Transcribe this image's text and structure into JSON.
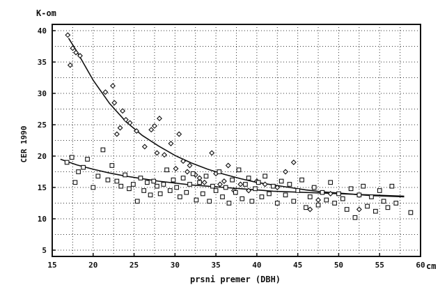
{
  "chart_data": {
    "type": "scatter",
    "y_unit": "K-om",
    "x_unit": "cm",
    "ylabel": "CER 1990",
    "xlabel": "prsni premer (DBH)",
    "xlim": [
      15,
      60
    ],
    "ylim": [
      4,
      41
    ],
    "x_ticks": [
      15,
      20,
      25,
      30,
      35,
      40,
      45,
      50,
      55,
      60
    ],
    "y_ticks": [
      5,
      10,
      15,
      20,
      25,
      30,
      35,
      40
    ],
    "grid": true,
    "series": [
      {
        "marker": "diamond",
        "points": [
          [
            16.9,
            39.3
          ],
          [
            17.2,
            34.5
          ],
          [
            17.5,
            37.2
          ],
          [
            17.9,
            36.5
          ],
          [
            18.4,
            36.0
          ],
          [
            21.5,
            30.2
          ],
          [
            22.4,
            31.2
          ],
          [
            22.6,
            28.5
          ],
          [
            22.9,
            23.5
          ],
          [
            23.3,
            24.5
          ],
          [
            23.6,
            27.2
          ],
          [
            24.0,
            25.8
          ],
          [
            24.5,
            25.3
          ],
          [
            25.3,
            24.0
          ],
          [
            26.3,
            21.5
          ],
          [
            27.1,
            24.2
          ],
          [
            27.5,
            24.8
          ],
          [
            27.8,
            20.5
          ],
          [
            28.1,
            26.0
          ],
          [
            28.7,
            20.2
          ],
          [
            29.5,
            22.0
          ],
          [
            30.1,
            18.0
          ],
          [
            30.5,
            23.5
          ],
          [
            31.0,
            19.2
          ],
          [
            31.5,
            17.5
          ],
          [
            31.8,
            18.5
          ],
          [
            32.5,
            17.0
          ],
          [
            33.0,
            16.5
          ],
          [
            33.6,
            15.8
          ],
          [
            34.5,
            20.5
          ],
          [
            35.0,
            17.2
          ],
          [
            35.5,
            15.5
          ],
          [
            36.0,
            16.0
          ],
          [
            36.5,
            18.5
          ],
          [
            37.2,
            14.5
          ],
          [
            38.0,
            15.5
          ],
          [
            39.0,
            14.5
          ],
          [
            40.0,
            16.0
          ],
          [
            41.0,
            15.5
          ],
          [
            42.5,
            15.0
          ],
          [
            43.5,
            17.5
          ],
          [
            44.5,
            19.0
          ],
          [
            46.5,
            11.5
          ],
          [
            47.5,
            13.0
          ],
          [
            49.0,
            14.0
          ],
          [
            52.5,
            11.5
          ]
        ]
      },
      {
        "marker": "square",
        "points": [
          [
            16.8,
            19.0
          ],
          [
            17.4,
            19.8
          ],
          [
            17.8,
            15.8
          ],
          [
            18.2,
            17.5
          ],
          [
            18.8,
            18.2
          ],
          [
            19.3,
            19.5
          ],
          [
            20.0,
            15.0
          ],
          [
            20.6,
            16.8
          ],
          [
            21.2,
            21.0
          ],
          [
            21.8,
            16.2
          ],
          [
            22.3,
            18.5
          ],
          [
            22.9,
            16.0
          ],
          [
            23.4,
            15.2
          ],
          [
            23.9,
            17.0
          ],
          [
            24.4,
            14.8
          ],
          [
            24.9,
            15.5
          ],
          [
            25.4,
            12.8
          ],
          [
            25.8,
            16.5
          ],
          [
            26.2,
            14.5
          ],
          [
            26.6,
            15.8
          ],
          [
            27.0,
            13.8
          ],
          [
            27.4,
            16.0
          ],
          [
            27.8,
            15.2
          ],
          [
            28.2,
            14.0
          ],
          [
            28.6,
            15.5
          ],
          [
            29.0,
            17.8
          ],
          [
            29.4,
            14.5
          ],
          [
            29.8,
            16.2
          ],
          [
            30.2,
            15.0
          ],
          [
            30.6,
            13.5
          ],
          [
            31.0,
            16.5
          ],
          [
            31.4,
            14.2
          ],
          [
            31.8,
            15.5
          ],
          [
            32.2,
            17.2
          ],
          [
            32.6,
            13.0
          ],
          [
            33.0,
            15.8
          ],
          [
            33.4,
            14.0
          ],
          [
            33.8,
            16.8
          ],
          [
            34.2,
            12.8
          ],
          [
            34.6,
            15.2
          ],
          [
            35.0,
            14.5
          ],
          [
            35.4,
            17.5
          ],
          [
            35.8,
            13.5
          ],
          [
            36.2,
            15.0
          ],
          [
            36.6,
            12.5
          ],
          [
            37.0,
            16.2
          ],
          [
            37.4,
            14.2
          ],
          [
            37.8,
            17.8
          ],
          [
            38.2,
            13.2
          ],
          [
            38.6,
            15.5
          ],
          [
            39.0,
            16.5
          ],
          [
            39.4,
            12.8
          ],
          [
            39.8,
            14.8
          ],
          [
            40.2,
            15.8
          ],
          [
            40.6,
            13.5
          ],
          [
            41.0,
            16.8
          ],
          [
            41.5,
            14.0
          ],
          [
            42.0,
            15.2
          ],
          [
            42.5,
            12.5
          ],
          [
            43.0,
            16.0
          ],
          [
            43.5,
            13.8
          ],
          [
            44.0,
            15.5
          ],
          [
            44.5,
            12.8
          ],
          [
            45.0,
            14.5
          ],
          [
            45.5,
            16.2
          ],
          [
            46.0,
            11.8
          ],
          [
            46.5,
            13.5
          ],
          [
            47.0,
            15.0
          ],
          [
            47.5,
            12.2
          ],
          [
            48.0,
            14.2
          ],
          [
            48.5,
            13.0
          ],
          [
            49.0,
            15.8
          ],
          [
            49.5,
            12.5
          ],
          [
            50.0,
            14.0
          ],
          [
            50.5,
            13.2
          ],
          [
            51.0,
            11.5
          ],
          [
            51.5,
            14.8
          ],
          [
            52.0,
            10.2
          ],
          [
            52.5,
            13.8
          ],
          [
            53.0,
            15.2
          ],
          [
            53.5,
            12.0
          ],
          [
            54.0,
            13.5
          ],
          [
            54.5,
            11.2
          ],
          [
            55.0,
            14.5
          ],
          [
            55.5,
            12.8
          ],
          [
            56.0,
            11.8
          ],
          [
            56.5,
            15.2
          ],
          [
            57.0,
            12.5
          ],
          [
            58.8,
            11.0
          ]
        ]
      }
    ],
    "fit_lines": [
      {
        "for_series": 0,
        "points": [
          [
            17,
            38.8
          ],
          [
            18,
            36.7
          ],
          [
            19,
            34.4
          ],
          [
            20,
            32.1
          ],
          [
            22,
            28.4
          ],
          [
            24,
            25.5
          ],
          [
            26,
            23.3
          ],
          [
            28,
            21.6
          ],
          [
            30,
            20.1
          ],
          [
            32,
            18.9
          ],
          [
            34,
            17.9
          ],
          [
            36,
            17.1
          ],
          [
            38,
            16.4
          ],
          [
            40,
            15.8
          ],
          [
            42,
            15.4
          ],
          [
            44,
            15.0
          ],
          [
            46,
            14.6
          ],
          [
            48,
            14.3
          ],
          [
            50,
            14.1
          ],
          [
            52,
            13.9
          ],
          [
            54,
            13.7
          ],
          [
            56,
            13.6
          ],
          [
            58,
            13.5
          ]
        ]
      },
      {
        "for_series": 1,
        "points": [
          [
            16,
            19.5
          ],
          [
            18,
            18.6
          ],
          [
            20,
            17.9
          ],
          [
            22,
            17.3
          ],
          [
            24,
            16.8
          ],
          [
            26,
            16.4
          ],
          [
            28,
            16.0
          ],
          [
            30,
            15.7
          ],
          [
            32,
            15.4
          ],
          [
            34,
            15.2
          ],
          [
            36,
            15.0
          ],
          [
            38,
            14.8
          ],
          [
            40,
            14.6
          ],
          [
            42,
            14.4
          ],
          [
            44,
            14.3
          ],
          [
            46,
            14.2
          ],
          [
            48,
            14.1
          ],
          [
            50,
            14.0
          ],
          [
            52,
            13.9
          ],
          [
            54,
            13.8
          ],
          [
            56,
            13.7
          ],
          [
            58,
            13.6
          ]
        ]
      }
    ]
  }
}
